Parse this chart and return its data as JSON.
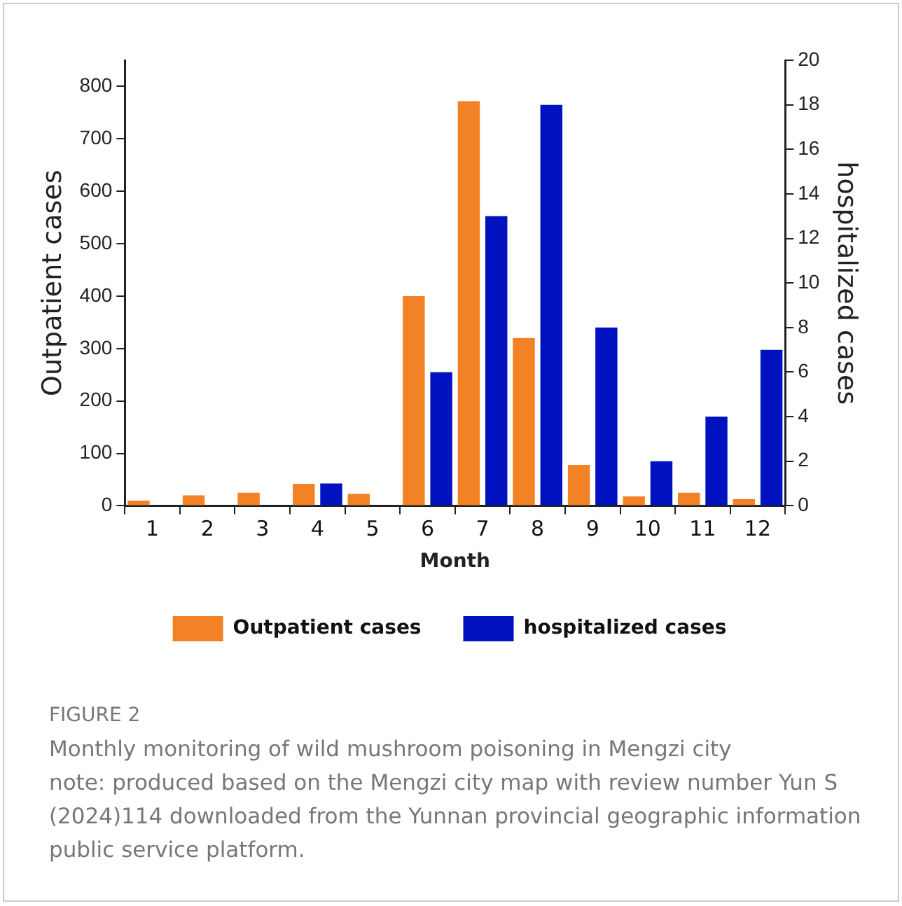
{
  "chart_data": {
    "type": "bar",
    "title": "FIGURE 2",
    "subtitle": "Monthly monitoring of wild mushroom poisoning in Mengzi city",
    "annotations": [
      "note: produced based on the Mengzi city map with review number Yun S (2024)114 downloaded from the Yunnan provincial geographic information public service platform."
    ],
    "xlabel": "Month",
    "ylabel": "Outpatient cases",
    "y2label": "hospitalized cases",
    "categories": [
      "1",
      "2",
      "3",
      "4",
      "5",
      "6",
      "7",
      "8",
      "9",
      "10",
      "11",
      "12"
    ],
    "series": [
      {
        "name": "Outpatient cases",
        "color": "#f28225",
        "values": [
          10,
          20,
          25,
          42,
          23,
          400,
          772,
          320,
          78,
          18,
          25,
          13
        ]
      },
      {
        "name": "hospitalized cases",
        "color": "#0012c0",
        "axis": "y2",
        "values": [
          0,
          0,
          0,
          1,
          0,
          6,
          13,
          18,
          8,
          2,
          4,
          7
        ]
      }
    ],
    "ylim": [
      0,
      850
    ],
    "yticks": [
      0,
      100,
      200,
      300,
      400,
      500,
      600,
      700,
      800
    ],
    "y2lim": [
      0,
      20
    ],
    "y2ticks": [
      0,
      2,
      4,
      6,
      8,
      10,
      12,
      14,
      16,
      18,
      20
    ],
    "grid": false,
    "legend": "bottom"
  }
}
